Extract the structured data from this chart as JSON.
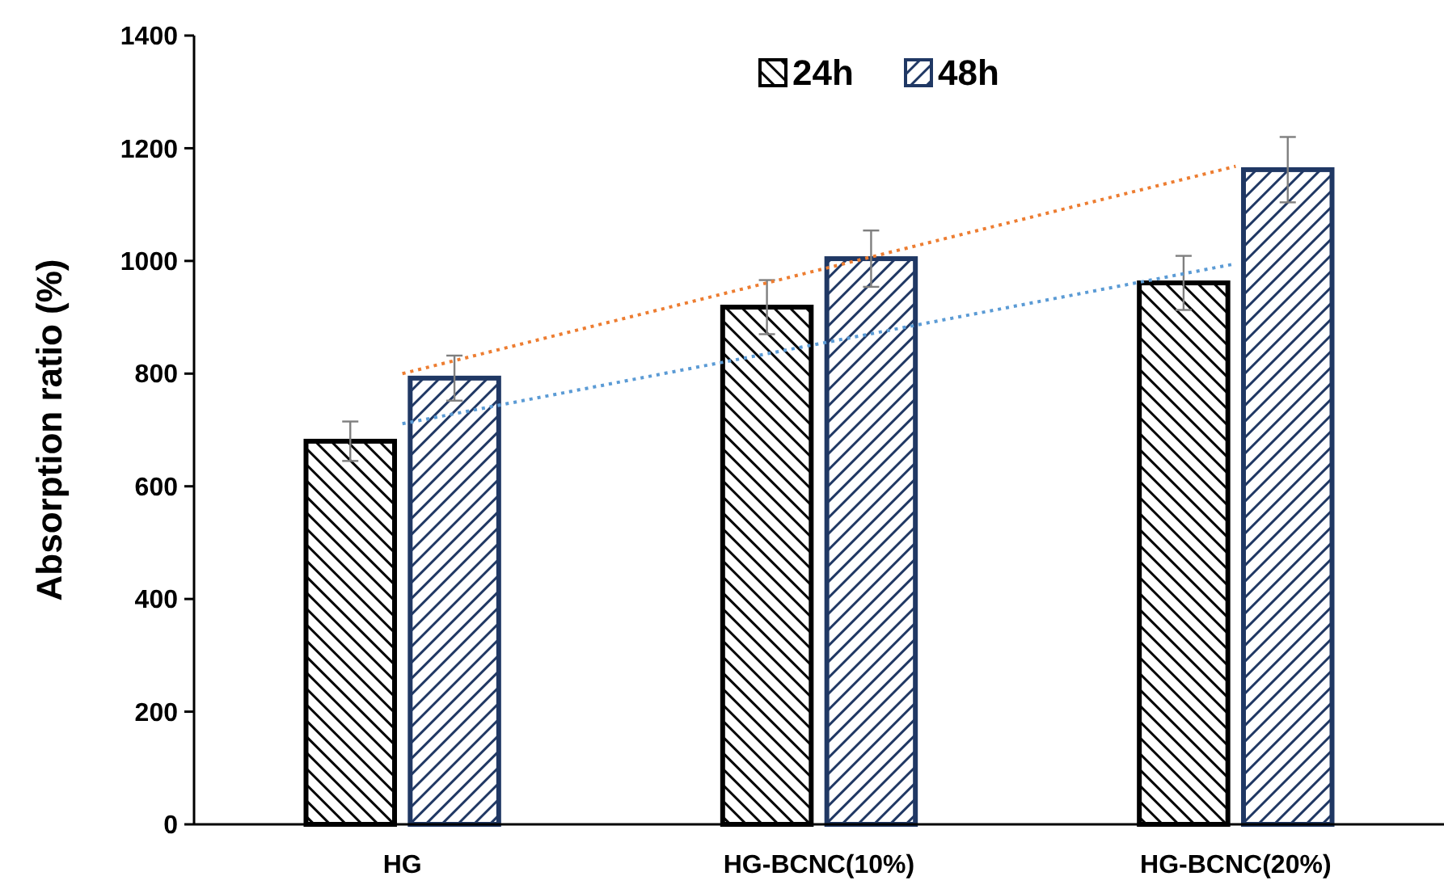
{
  "chart_data": {
    "type": "bar",
    "ylabel": "Absorption ratio (%)",
    "categories": [
      "HG",
      "HG-BCNC(10%)",
      "HG-BCNC(20%)"
    ],
    "series": [
      {
        "name": "24h",
        "color": "#000000",
        "values": [
          680,
          918,
          961
        ],
        "errors": [
          35,
          48,
          48
        ]
      },
      {
        "name": "48h",
        "color": "#203864",
        "values": [
          792,
          1004,
          1162
        ],
        "errors": [
          40,
          50,
          58
        ]
      },
      {
        "type": "line",
        "color": "#5b9bd5",
        "values": [
          711,
          853,
          995
        ],
        "line_style": "dotted"
      },
      {
        "type": "line",
        "color": "#ed7d31",
        "values": [
          800,
          984,
          1168
        ],
        "line_style": "dotted"
      }
    ],
    "ylim": [
      0,
      1400
    ],
    "yticks": [
      0,
      200,
      400,
      600,
      800,
      1000,
      1200,
      1400
    ],
    "grid": false,
    "legend": "top right"
  }
}
